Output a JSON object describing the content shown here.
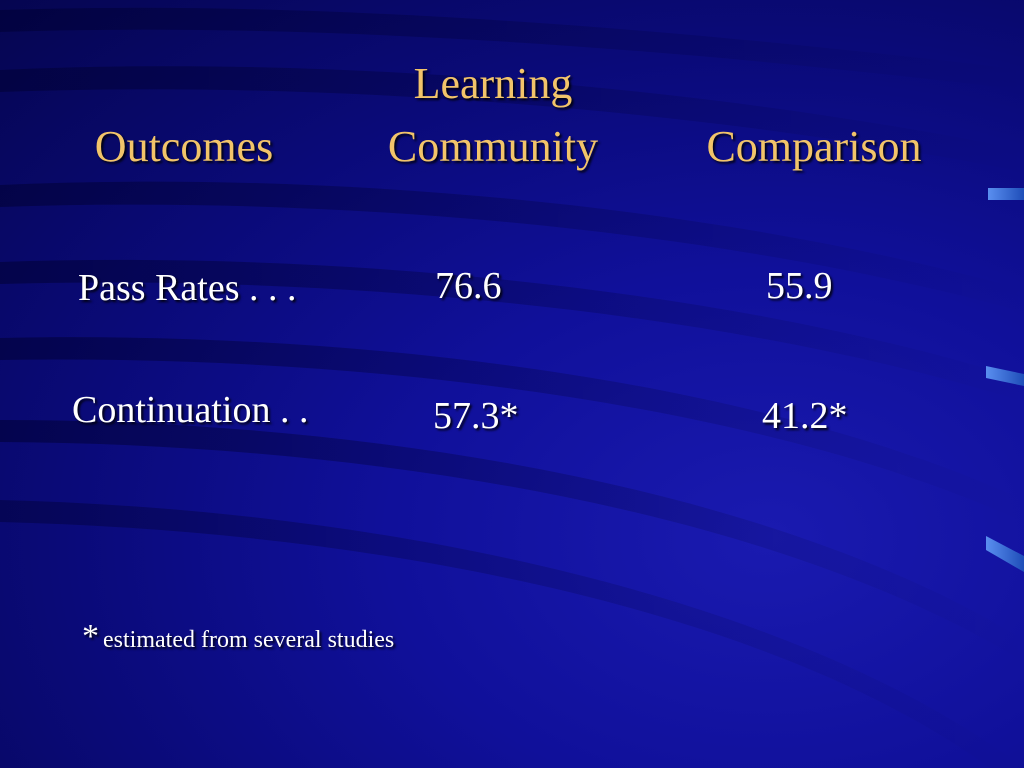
{
  "table": {
    "headers": {
      "outcomes": "Outcomes",
      "learning_community_line1": "Learning",
      "learning_community_line2": "Community",
      "comparison": "Comparison"
    },
    "rows": [
      {
        "label": "Pass Rates  . . .",
        "learning_community": "76.6",
        "comparison": "55.9"
      },
      {
        "label": "Continuation . .",
        "learning_community": "57.3*",
        "comparison": "41.2*"
      }
    ]
  },
  "footnote": {
    "star": "*",
    "text": "estimated from several studies"
  },
  "colors": {
    "background": "#0a0a6e",
    "header_text": "#f2c46a",
    "body_text": "#ffffff",
    "accent_stripe": "#3a6fd8"
  }
}
